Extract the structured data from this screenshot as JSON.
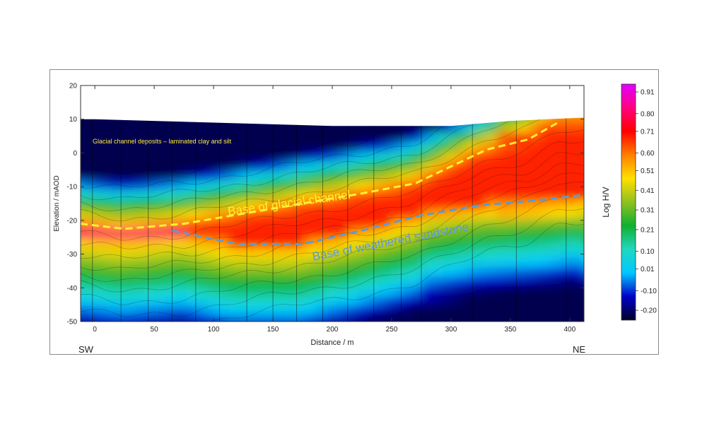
{
  "chart_data": {
    "type": "heatmap",
    "title": "",
    "xlabel": "Distance / m",
    "ylabel": "Elevation / mAOD",
    "xlim": [
      -12,
      412
    ],
    "ylim": [
      -50,
      20
    ],
    "x_ticks": [
      0,
      50,
      100,
      150,
      200,
      250,
      300,
      350,
      400
    ],
    "y_ticks": [
      20,
      10,
      0,
      -10,
      -20,
      -30,
      -40,
      -50
    ],
    "corner_labels": {
      "left": "SW",
      "right": "NE"
    },
    "colorbar": {
      "label": "Log H/V",
      "ticks": [
        0.91,
        0.8,
        0.71,
        0.6,
        0.51,
        0.41,
        0.31,
        0.21,
        0.1,
        0.01,
        -0.1,
        -0.2
      ],
      "range": [
        -0.25,
        0.95
      ],
      "colors": [
        "#000028",
        "#0000c8",
        "#00c8ff",
        "#20d8c0",
        "#10b030",
        "#90c020",
        "#ffe000",
        "#ff8000",
        "#ff0000",
        "#ff0080",
        "#e000ff"
      ]
    },
    "surface_profile": {
      "x": [
        -12,
        0,
        50,
        100,
        150,
        200,
        250,
        300,
        350,
        412
      ],
      "y": [
        10,
        10,
        9.5,
        9,
        8.5,
        8,
        8,
        8,
        9.5,
        10.5
      ]
    },
    "sounding_positions": [
      -2,
      22,
      45,
      65,
      85,
      105,
      128,
      150,
      170,
      192,
      213,
      235,
      258,
      275,
      318,
      355,
      397
    ],
    "layers": [
      {
        "name": "Glacial channel deposits – laminated clay and silt"
      },
      {
        "name": "Base of glacial channel",
        "color": "#ffee33",
        "x": [
          -12,
          25,
          75,
          125,
          175,
          225,
          270,
          300,
          330,
          365,
          390
        ],
        "y": [
          -21,
          -22.5,
          -21,
          -18,
          -15,
          -12,
          -9,
          -4,
          1,
          4,
          9
        ]
      },
      {
        "name": "Base of weathered sandstone",
        "color": "#5b9bd5",
        "x": [
          65,
          120,
          175,
          225,
          275,
          325,
          375,
          410
        ],
        "y": [
          -23,
          -27,
          -27,
          -23,
          -18.5,
          -15.5,
          -14,
          -12.5
        ]
      }
    ],
    "legend": "colorbar right"
  }
}
